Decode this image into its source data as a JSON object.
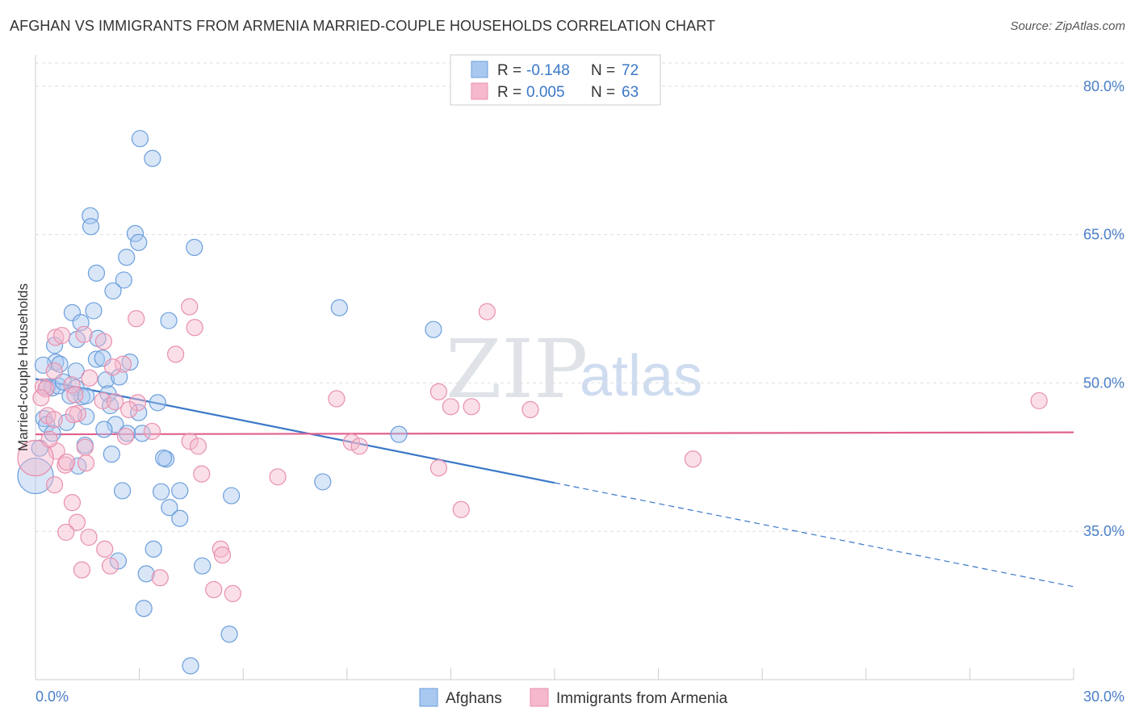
{
  "header": {
    "title": "AFGHAN VS IMMIGRANTS FROM ARMENIA MARRIED-COUPLE HOUSEHOLDS CORRELATION CHART",
    "source": "Source: ZipAtlas.com"
  },
  "watermark": {
    "zip": "ZIP",
    "atlas": "atlas"
  },
  "legend": {
    "rows": [
      {
        "r_label": "R =",
        "r_value": "-0.148",
        "n_label": "N =",
        "n_value": "72"
      },
      {
        "r_label": "R =",
        "r_value": "0.005",
        "n_label": "N =",
        "n_value": "63"
      }
    ]
  },
  "colors": {
    "afghans_fill": "#a9c8f0",
    "afghans_stroke": "#6b9edb",
    "afghans_line": "#3a78c8",
    "armenia_fill": "#f5b8cc",
    "armenia_stroke": "#e88fae",
    "armenia_line": "#e0628e",
    "grid": "#dddddd",
    "axis": "#cccccc"
  },
  "chart_data": {
    "type": "scatter",
    "title": "AFGHAN VS IMMIGRANTS FROM ARMENIA MARRIED-COUPLE HOUSEHOLDS CORRELATION CHART",
    "xlabel": "",
    "ylabel": "Married-couple Households",
    "xlim": [
      0,
      30
    ],
    "ylim": [
      20,
      83
    ],
    "x_tick_labels": [
      "0.0%",
      "30.0%"
    ],
    "y_ticks": [
      35,
      50,
      65,
      80
    ],
    "y_tick_labels": [
      "35.0%",
      "50.0%",
      "65.0%",
      "80.0%"
    ],
    "grid": true,
    "legend_position": "top-center",
    "series": [
      {
        "name": "Afghans",
        "r": -0.148,
        "n": 72,
        "trend": {
          "x0": 0.0,
          "y0": 50.4,
          "x1": 15.0,
          "y1": 39.9,
          "dashed_to_x": 30.0,
          "dashed_to_y": 29.4
        },
        "points": [
          [
            3.02,
            74.7
          ],
          [
            3.38,
            72.7
          ],
          [
            1.58,
            66.9
          ],
          [
            1.6,
            65.8
          ],
          [
            2.88,
            65.1
          ],
          [
            2.98,
            64.2
          ],
          [
            4.59,
            63.7
          ],
          [
            2.63,
            62.7
          ],
          [
            1.76,
            61.1
          ],
          [
            2.55,
            60.4
          ],
          [
            2.24,
            59.3
          ],
          [
            8.78,
            57.6
          ],
          [
            1.68,
            57.3
          ],
          [
            1.06,
            57.1
          ],
          [
            1.31,
            56.1
          ],
          [
            3.85,
            56.3
          ],
          [
            11.5,
            55.4
          ],
          [
            0.55,
            53.8
          ],
          [
            1.8,
            54.5
          ],
          [
            1.2,
            54.4
          ],
          [
            0.58,
            52.1
          ],
          [
            0.7,
            51.9
          ],
          [
            1.76,
            52.4
          ],
          [
            1.94,
            52.5
          ],
          [
            2.73,
            52.1
          ],
          [
            1.17,
            51.2
          ],
          [
            0.22,
            51.8
          ],
          [
            0.34,
            49.6
          ],
          [
            0.48,
            49.5
          ],
          [
            0.66,
            49.7
          ],
          [
            0.8,
            50.1
          ],
          [
            2.04,
            50.3
          ],
          [
            2.42,
            50.6
          ],
          [
            1.17,
            49.5
          ],
          [
            1.34,
            48.6
          ],
          [
            1.0,
            48.7
          ],
          [
            1.46,
            48.7
          ],
          [
            2.1,
            48.9
          ],
          [
            2.16,
            47.7
          ],
          [
            3.53,
            48.0
          ],
          [
            2.98,
            47.0
          ],
          [
            1.46,
            46.6
          ],
          [
            0.24,
            46.4
          ],
          [
            0.32,
            45.8
          ],
          [
            0.9,
            46.0
          ],
          [
            2.31,
            45.8
          ],
          [
            1.98,
            45.3
          ],
          [
            3.08,
            44.9
          ],
          [
            2.65,
            44.9
          ],
          [
            10.5,
            44.8
          ],
          [
            0.49,
            44.9
          ],
          [
            1.43,
            43.7
          ],
          [
            2.2,
            42.8
          ],
          [
            0.12,
            43.4
          ],
          [
            1.23,
            41.6
          ],
          [
            3.77,
            42.3
          ],
          [
            0.0,
            40.6
          ],
          [
            8.3,
            40.0
          ],
          [
            2.51,
            39.1
          ],
          [
            3.63,
            39.0
          ],
          [
            4.17,
            39.1
          ],
          [
            5.66,
            38.6
          ],
          [
            3.87,
            37.4
          ],
          [
            4.17,
            36.3
          ],
          [
            3.41,
            33.2
          ],
          [
            2.39,
            32.0
          ],
          [
            4.82,
            31.5
          ],
          [
            3.2,
            30.7
          ],
          [
            3.13,
            27.2
          ],
          [
            5.6,
            24.6
          ],
          [
            4.48,
            21.4
          ],
          [
            3.7,
            42.4
          ]
        ]
      },
      {
        "name": "Immigrants from Armenia",
        "r": 0.005,
        "n": 63,
        "trend": {
          "x0": 0.0,
          "y0": 44.8,
          "x1": 30.0,
          "y1": 45.0
        },
        "points": [
          [
            4.45,
            57.7
          ],
          [
            13.05,
            57.2
          ],
          [
            2.91,
            56.5
          ],
          [
            4.6,
            55.6
          ],
          [
            1.4,
            54.9
          ],
          [
            0.58,
            54.6
          ],
          [
            0.76,
            54.8
          ],
          [
            1.97,
            54.2
          ],
          [
            4.05,
            52.9
          ],
          [
            2.53,
            51.9
          ],
          [
            2.23,
            51.6
          ],
          [
            0.54,
            51.2
          ],
          [
            1.56,
            50.5
          ],
          [
            0.22,
            49.6
          ],
          [
            0.3,
            49.4
          ],
          [
            1.05,
            49.8
          ],
          [
            11.65,
            49.1
          ],
          [
            8.7,
            48.4
          ],
          [
            0.16,
            48.5
          ],
          [
            1.14,
            48.8
          ],
          [
            1.94,
            48.2
          ],
          [
            2.3,
            48.1
          ],
          [
            2.95,
            48.0
          ],
          [
            12.0,
            47.6
          ],
          [
            12.6,
            47.6
          ],
          [
            14.3,
            47.3
          ],
          [
            1.22,
            46.9
          ],
          [
            0.35,
            46.7
          ],
          [
            0.54,
            46.3
          ],
          [
            29.0,
            48.2
          ],
          [
            3.37,
            45.1
          ],
          [
            2.6,
            44.6
          ],
          [
            4.46,
            44.1
          ],
          [
            9.13,
            44.0
          ],
          [
            9.36,
            43.6
          ],
          [
            4.7,
            43.6
          ],
          [
            1.43,
            43.5
          ],
          [
            0.61,
            43.1
          ],
          [
            0.0,
            42.4
          ],
          [
            19.0,
            42.3
          ],
          [
            1.46,
            41.9
          ],
          [
            0.86,
            41.7
          ],
          [
            11.65,
            41.4
          ],
          [
            4.8,
            40.8
          ],
          [
            7.0,
            40.5
          ],
          [
            0.55,
            39.7
          ],
          [
            1.06,
            37.9
          ],
          [
            12.3,
            37.2
          ],
          [
            1.2,
            35.9
          ],
          [
            0.88,
            34.9
          ],
          [
            1.54,
            34.4
          ],
          [
            2.0,
            33.2
          ],
          [
            5.35,
            33.2
          ],
          [
            5.4,
            32.6
          ],
          [
            2.16,
            31.5
          ],
          [
            1.34,
            31.1
          ],
          [
            3.6,
            30.3
          ],
          [
            5.15,
            29.1
          ],
          [
            5.7,
            28.7
          ],
          [
            0.4,
            44.3
          ],
          [
            0.9,
            42.0
          ],
          [
            2.7,
            47.3
          ],
          [
            1.1,
            46.8
          ]
        ]
      }
    ]
  },
  "bottom_legend": {
    "items": [
      "Afghans",
      "Immigrants from Armenia"
    ]
  }
}
